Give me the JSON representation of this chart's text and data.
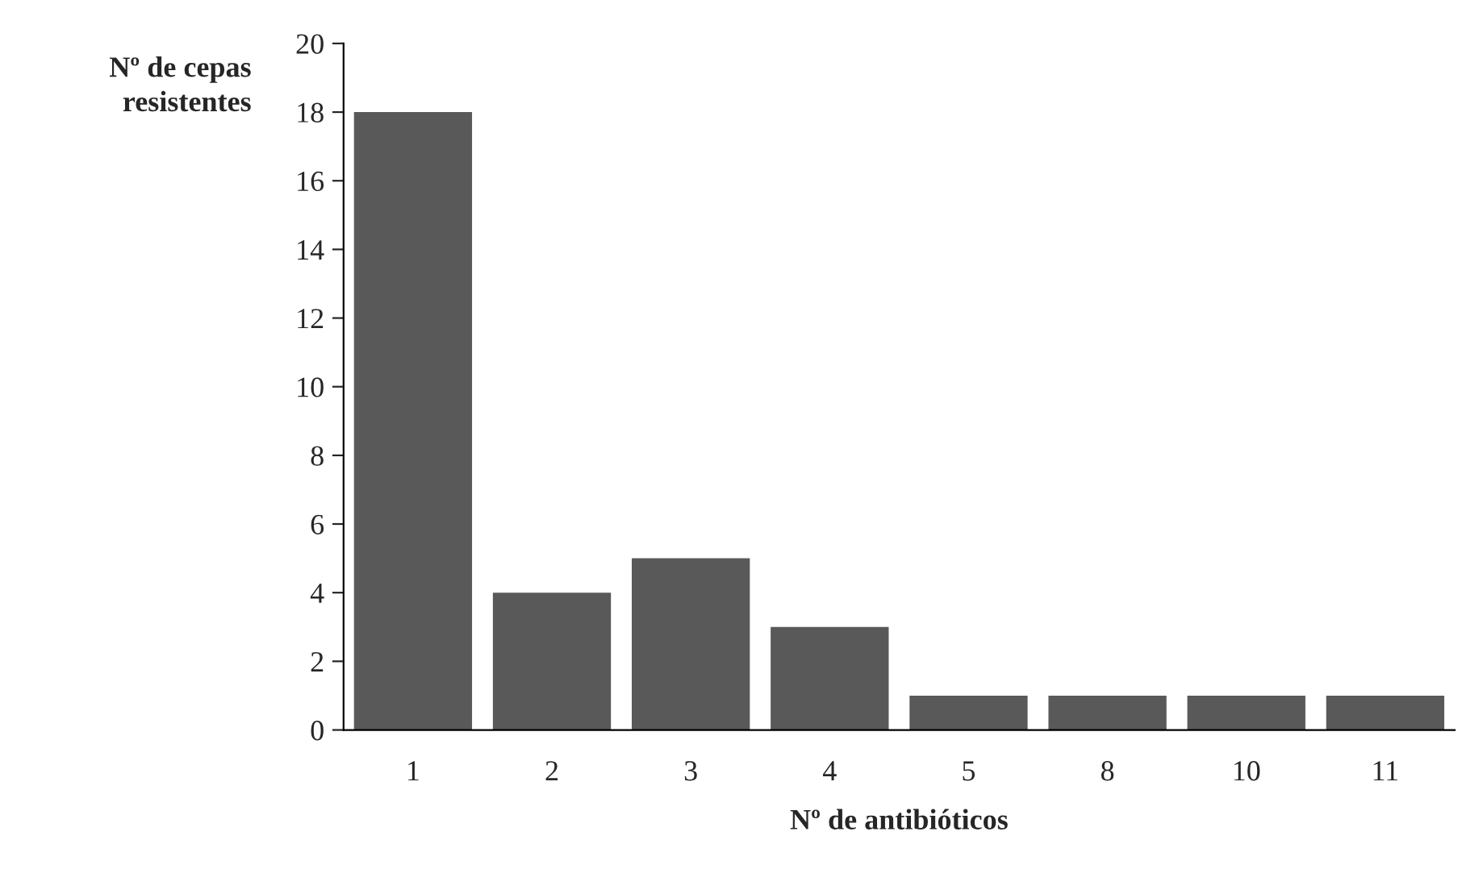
{
  "chart_data": {
    "type": "bar",
    "xlabel": "Nº de antibióticos",
    "ylabel": "Nº de cepas\nresistentes",
    "categories": [
      "1",
      "2",
      "3",
      "4",
      "5",
      "8",
      "10",
      "11"
    ],
    "values": [
      18,
      4,
      5,
      3,
      1,
      1,
      1,
      1
    ],
    "color": "#595959",
    "ylim": [
      0,
      20
    ],
    "yticks": [
      0,
      2,
      4,
      6,
      8,
      10,
      12,
      14,
      16,
      18,
      20
    ],
    "grid": false,
    "legend": false
  }
}
